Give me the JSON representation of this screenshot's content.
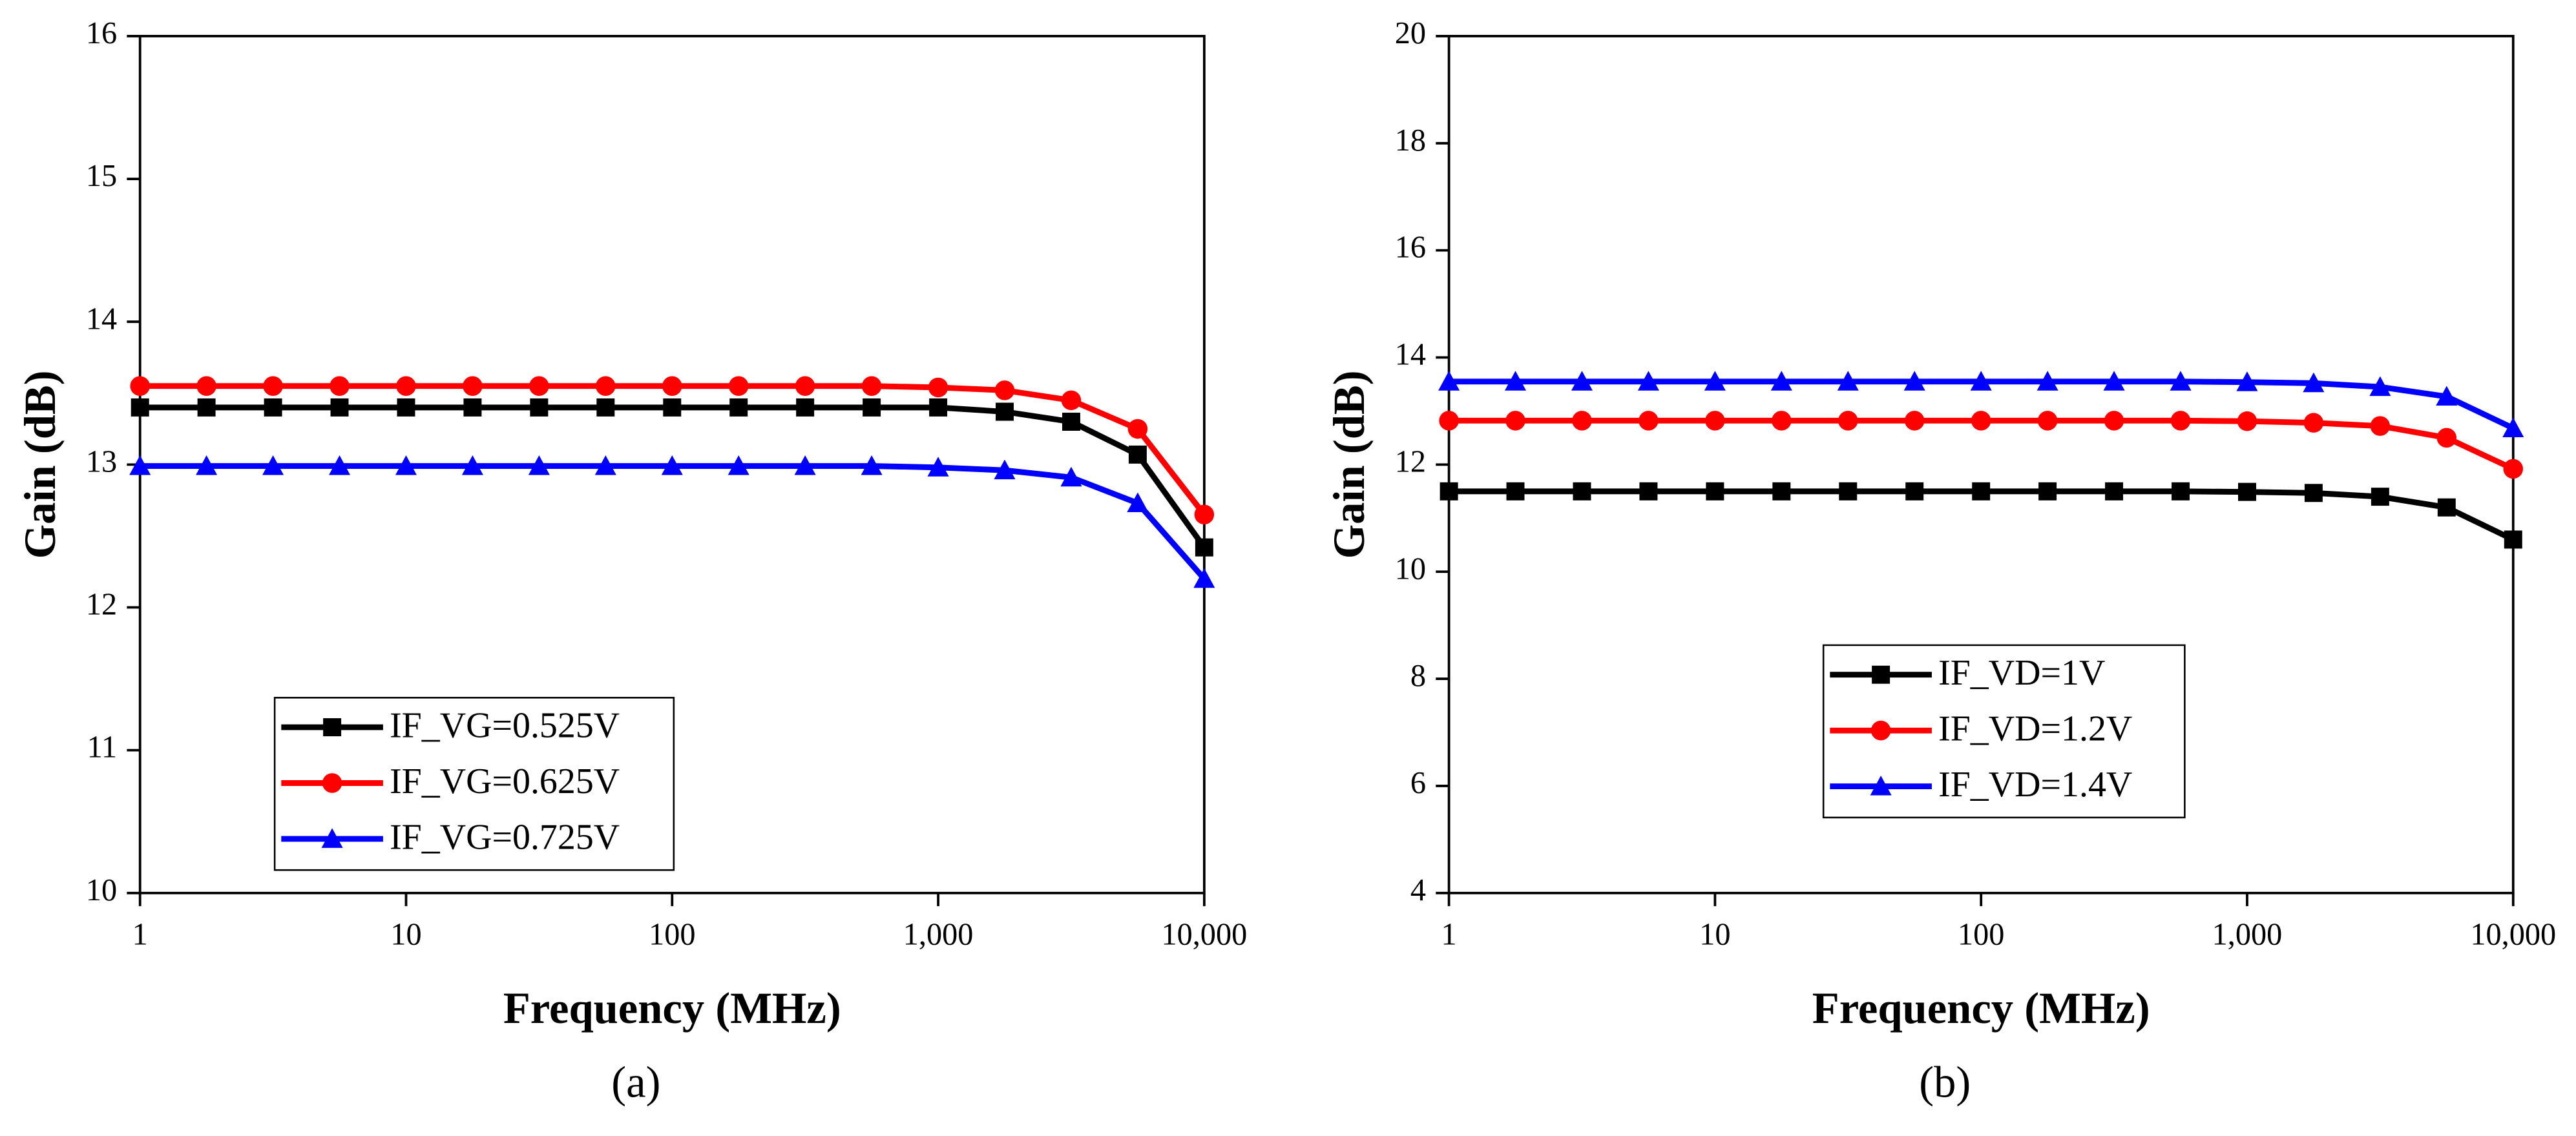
{
  "chart_data": [
    {
      "type": "line",
      "caption": "(a)",
      "x_label": "Frequency (MHz)",
      "y_label": "Gain (dB)",
      "xscale": "log",
      "xlim": [
        1,
        10000
      ],
      "xticks": [
        1,
        10,
        100,
        {
          "value": 1000,
          "label": "1,000"
        },
        {
          "value": 10000,
          "label": "10,000"
        }
      ],
      "ylim": [
        10,
        16
      ],
      "yticks": [
        10,
        11,
        12,
        13,
        14,
        15,
        16
      ],
      "legend": "lower left",
      "x": [
        1,
        1.778,
        3.162,
        5.623,
        10,
        17.78,
        31.62,
        56.23,
        100,
        177.8,
        316.2,
        562.3,
        1000,
        1778,
        3162,
        5623,
        10000
      ],
      "series": [
        {
          "name": "IF_VG=0.525V",
          "color": "#000000",
          "marker": "square",
          "values": [
            13.4,
            13.4,
            13.4,
            13.4,
            13.4,
            13.4,
            13.4,
            13.4,
            13.4,
            13.4,
            13.4,
            13.4,
            13.4,
            13.37,
            13.3,
            13.07,
            12.42
          ]
        },
        {
          "name": "IF_VG=0.625V",
          "color": "#ff0000",
          "marker": "circle",
          "values": [
            13.55,
            13.55,
            13.55,
            13.55,
            13.55,
            13.55,
            13.55,
            13.55,
            13.55,
            13.55,
            13.55,
            13.55,
            13.54,
            13.52,
            13.45,
            13.25,
            12.65
          ]
        },
        {
          "name": "IF_VG=0.725V",
          "color": "#0000ff",
          "marker": "triangle",
          "values": [
            12.99,
            12.99,
            12.99,
            12.99,
            12.99,
            12.99,
            12.99,
            12.99,
            12.99,
            12.99,
            12.99,
            12.99,
            12.98,
            12.96,
            12.91,
            12.73,
            12.2
          ]
        }
      ]
    },
    {
      "type": "line",
      "caption": "(b)",
      "x_label": "Frequency (MHz)",
      "y_label": "Gain (dB)",
      "xscale": "log",
      "xlim": [
        1,
        10000
      ],
      "xticks": [
        1,
        10,
        100,
        {
          "value": 1000,
          "label": "1,000"
        },
        {
          "value": 10000,
          "label": "10,000"
        }
      ],
      "ylim": [
        4,
        20
      ],
      "yticks": [
        4,
        6,
        8,
        10,
        12,
        14,
        16,
        18,
        20
      ],
      "legend": "lower center",
      "x": [
        1,
        1.778,
        3.162,
        5.623,
        10,
        17.78,
        31.62,
        56.23,
        100,
        177.8,
        316.2,
        562.3,
        1000,
        1778,
        3162,
        5623,
        10000
      ],
      "series": [
        {
          "name": "IF_VD=1V",
          "color": "#000000",
          "marker": "square",
          "values": [
            11.5,
            11.5,
            11.5,
            11.5,
            11.5,
            11.5,
            11.5,
            11.5,
            11.5,
            11.5,
            11.5,
            11.5,
            11.49,
            11.47,
            11.4,
            11.2,
            10.6
          ]
        },
        {
          "name": "IF_VD=1.2V",
          "color": "#ff0000",
          "marker": "circle",
          "values": [
            12.82,
            12.82,
            12.82,
            12.82,
            12.82,
            12.82,
            12.82,
            12.82,
            12.82,
            12.82,
            12.82,
            12.82,
            12.81,
            12.78,
            12.72,
            12.5,
            11.92
          ]
        },
        {
          "name": "IF_VD=1.4V",
          "color": "#0000ff",
          "marker": "triangle",
          "values": [
            13.55,
            13.55,
            13.55,
            13.55,
            13.55,
            13.55,
            13.55,
            13.55,
            13.55,
            13.55,
            13.55,
            13.55,
            13.54,
            13.52,
            13.45,
            13.27,
            12.68
          ]
        }
      ]
    }
  ]
}
